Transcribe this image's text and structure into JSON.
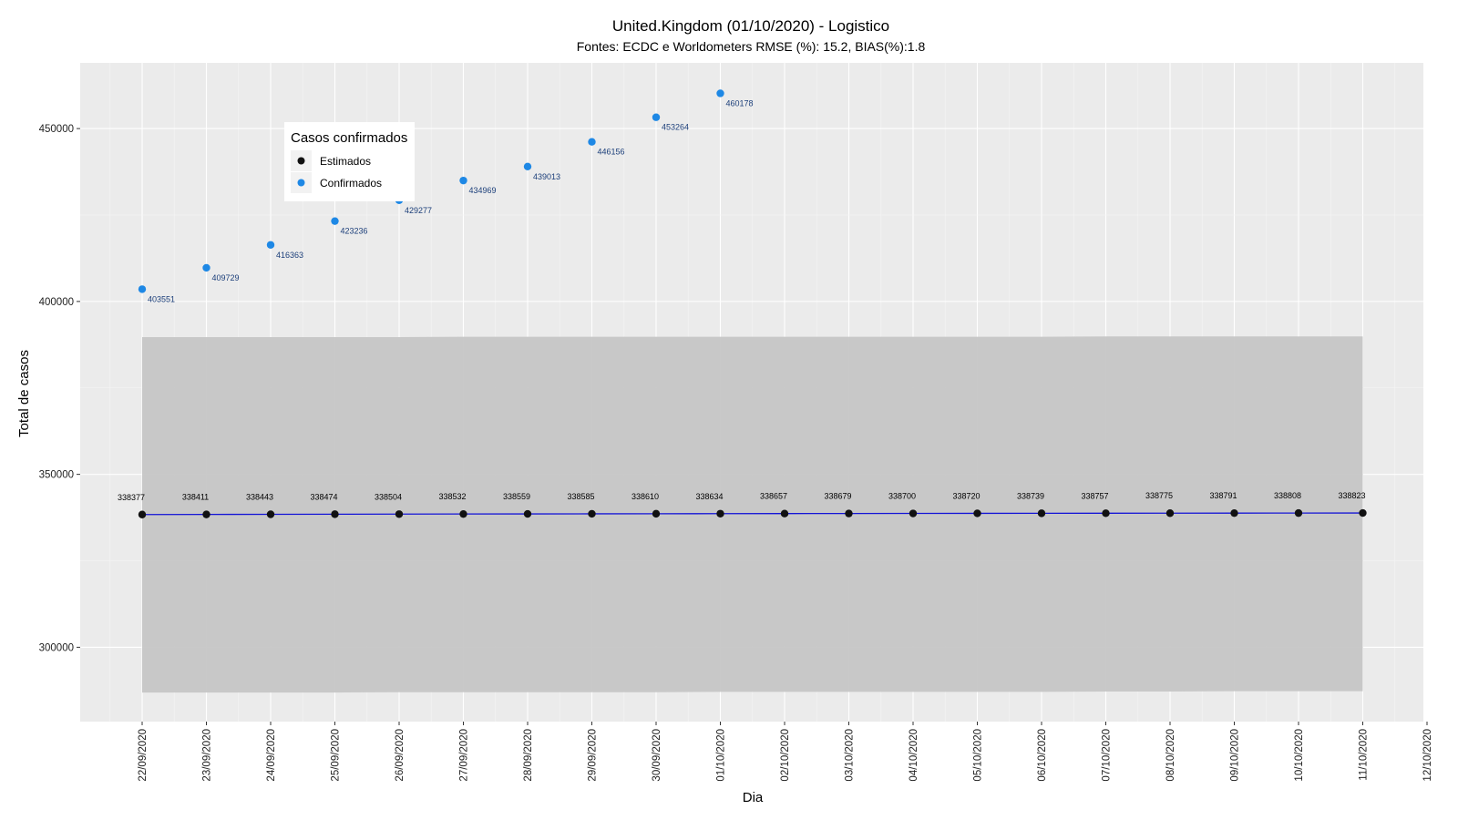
{
  "chart_data": {
    "type": "line",
    "title": "United.Kingdom (01/10/2020) - Logistico",
    "subtitle": "Fontes: ECDC e Worldometers RMSE (%): 15.2, BIAS(%):1.8",
    "xlabel": "Dia",
    "ylabel": "Total de casos",
    "x_ticks": [
      "22/09/2020",
      "23/09/2020",
      "24/09/2020",
      "25/09/2020",
      "26/09/2020",
      "27/09/2020",
      "28/09/2020",
      "29/09/2020",
      "30/09/2020",
      "01/10/2020",
      "02/10/2020",
      "03/10/2020",
      "04/10/2020",
      "05/10/2020",
      "06/10/2020",
      "07/10/2020",
      "08/10/2020",
      "09/10/2020",
      "10/10/2020",
      "11/10/2020",
      "12/10/2020"
    ],
    "y_ticks": [
      300000,
      350000,
      400000,
      450000
    ],
    "ylim": [
      278500,
      469000
    ],
    "grid": true,
    "legend": {
      "title": "Casos confirmados",
      "position": "top-left",
      "entries": [
        {
          "name": "Estimados",
          "color": "#111111"
        },
        {
          "name": "Confirmados",
          "color": "#1e88e5"
        }
      ]
    },
    "series": [
      {
        "name": "Estimados",
        "color": "#111111",
        "line_color": "#1515d6",
        "x": [
          "22/09/2020",
          "23/09/2020",
          "24/09/2020",
          "25/09/2020",
          "26/09/2020",
          "27/09/2020",
          "28/09/2020",
          "29/09/2020",
          "30/09/2020",
          "01/10/2020",
          "02/10/2020",
          "03/10/2020",
          "04/10/2020",
          "05/10/2020",
          "06/10/2020",
          "07/10/2020",
          "08/10/2020",
          "09/10/2020",
          "10/10/2020",
          "11/10/2020"
        ],
        "values": [
          338377,
          338411,
          338443,
          338474,
          338504,
          338532,
          338559,
          338585,
          338610,
          338634,
          338657,
          338679,
          338700,
          338720,
          338739,
          338757,
          338775,
          338791,
          338808,
          338823
        ],
        "labels": [
          "338377",
          "338411",
          "338443",
          "338474",
          "338504",
          "338532",
          "338559",
          "338585",
          "338610",
          "338634",
          "338657",
          "338679",
          "338700",
          "338720",
          "338739",
          "338757",
          "338775",
          "338791",
          "338808",
          "338823"
        ],
        "band_lower": [
          286900,
          286900,
          286900,
          286900,
          287000,
          287000,
          287000,
          287000,
          287000,
          287100,
          287100,
          287100,
          287100,
          287100,
          287100,
          287200,
          287200,
          287300,
          287300,
          287300
        ],
        "band_upper": [
          389700,
          389700,
          389700,
          389700,
          389700,
          389800,
          389800,
          389800,
          389800,
          389800,
          389800,
          389800,
          389800,
          389800,
          389800,
          389900,
          389900,
          389900,
          389900,
          389900
        ]
      },
      {
        "name": "Confirmados",
        "color": "#1e88e5",
        "x": [
          "22/09/2020",
          "23/09/2020",
          "24/09/2020",
          "25/09/2020",
          "26/09/2020",
          "27/09/2020",
          "28/09/2020",
          "29/09/2020",
          "30/09/2020",
          "01/10/2020"
        ],
        "values": [
          403551,
          409729,
          416363,
          423236,
          429277,
          434969,
          439013,
          446156,
          453264,
          460178
        ],
        "labels": [
          "403551",
          "409729",
          "416363",
          "423236",
          "429277",
          "434969",
          "439013",
          "446156",
          "453264",
          "460178"
        ]
      }
    ],
    "colors": {
      "panel": "#ebebeb",
      "grid_major": "#ffffff",
      "band": "#c6c6c6",
      "fit_line": "#1515d6"
    }
  }
}
